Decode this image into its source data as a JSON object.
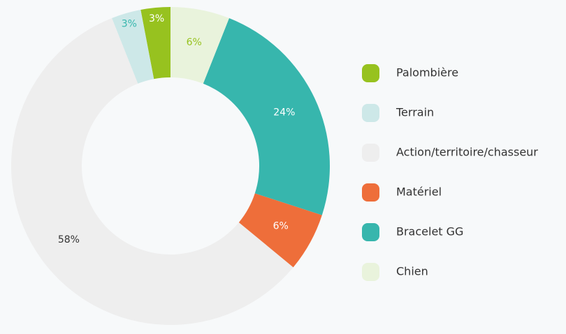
{
  "chart_data": {
    "type": "donut",
    "categories": [
      "Palombière",
      "Terrain",
      "Action/territoire/chasseur",
      "Matériel",
      "Bracelet GG",
      "Chien"
    ],
    "values": [
      3,
      3,
      58,
      6,
      24,
      6
    ],
    "value_labels": [
      "3%",
      "3%",
      "58%",
      "6%",
      "24%",
      "6%"
    ],
    "colors": [
      "#97c21f",
      "#cde8e8",
      "#eeeeee",
      "#ee6e3a",
      "#37b6ad",
      "#e9f3dc"
    ],
    "label_colors": [
      "#ffffff",
      "#37b6ad",
      "#333333",
      "#ffffff",
      "#ffffff",
      "#97c21f"
    ]
  }
}
